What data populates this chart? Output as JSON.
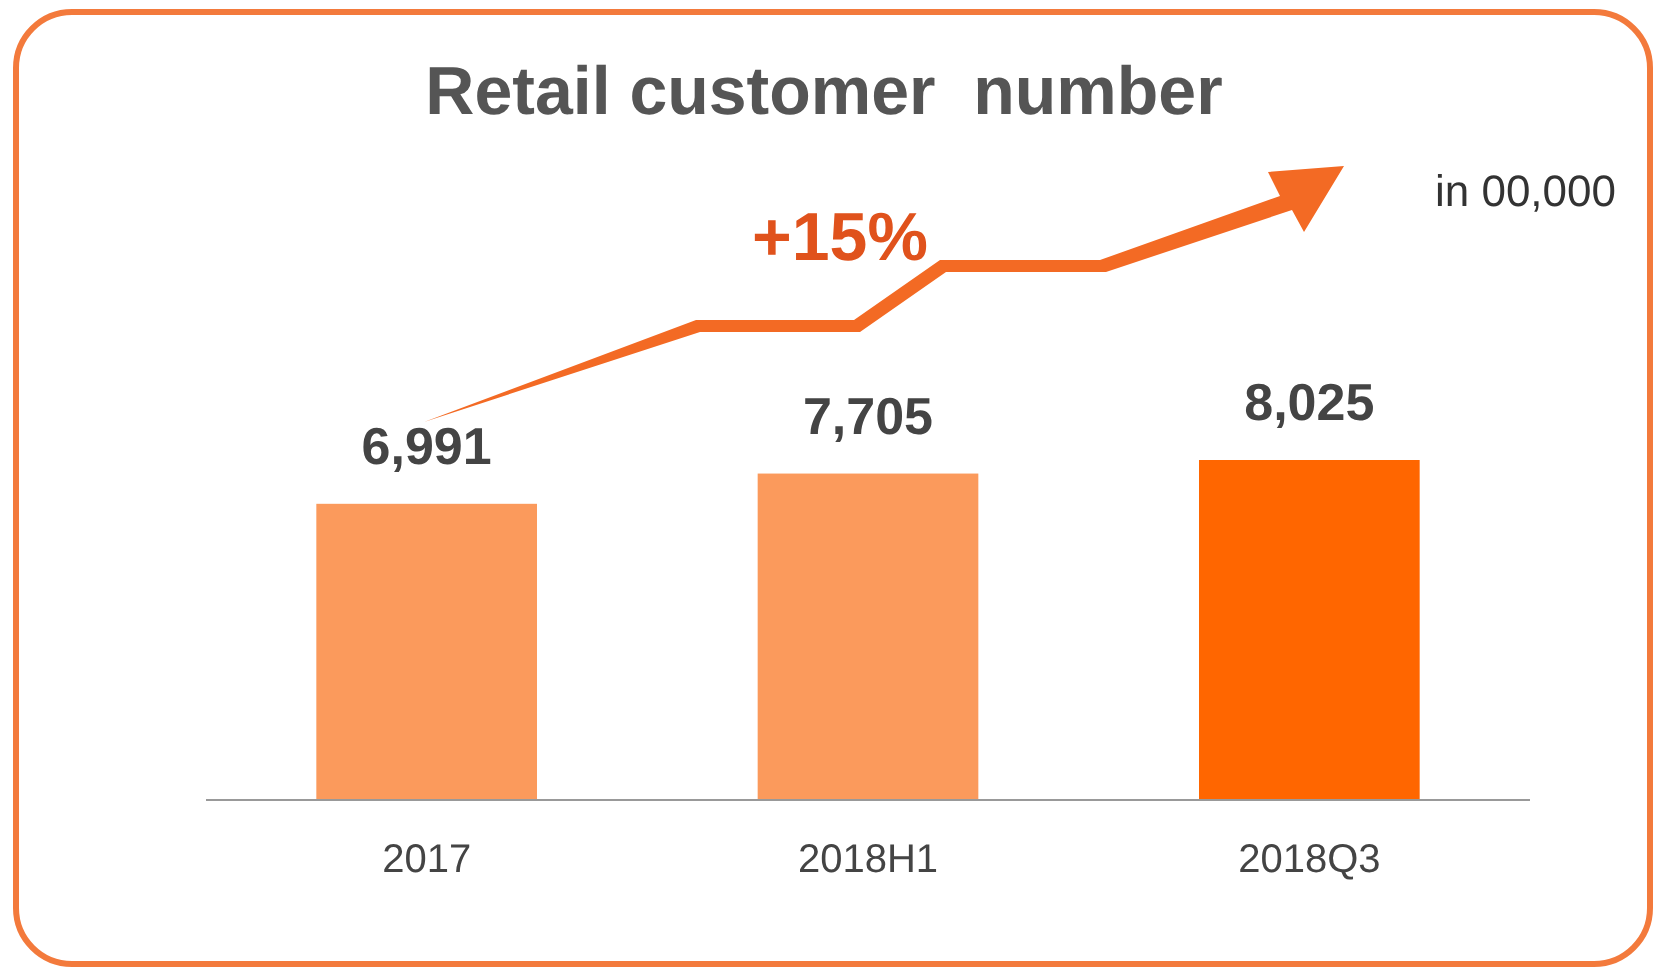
{
  "chart_data": {
    "type": "bar",
    "title": "Retail customer  number",
    "categories": [
      "2017",
      "2018H1",
      "2018Q3"
    ],
    "values": [
      6991,
      7705,
      8025
    ],
    "value_labels": [
      "6,991",
      "7,705",
      "8,025"
    ],
    "colors": [
      "#fb9a5c",
      "#fb9a5c",
      "#ff6600"
    ],
    "annotations": [
      "+15%",
      "in 00,000"
    ]
  }
}
